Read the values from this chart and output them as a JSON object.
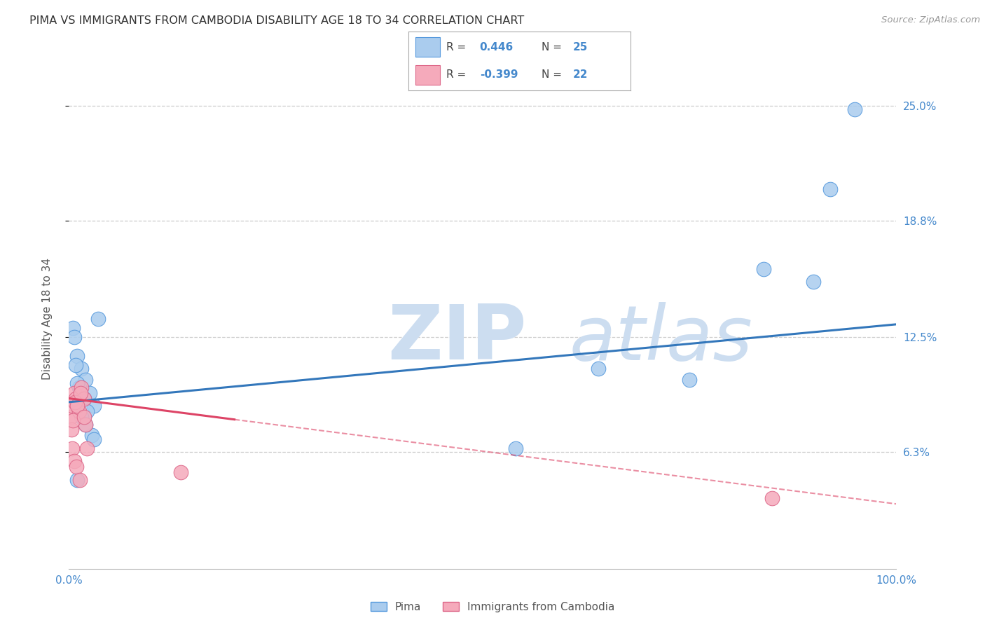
{
  "title": "PIMA VS IMMIGRANTS FROM CAMBODIA DISABILITY AGE 18 TO 34 CORRELATION CHART",
  "source": "Source: ZipAtlas.com",
  "ylabel": "Disability Age 18 to 34",
  "xlim": [
    0,
    100
  ],
  "ylim": [
    0,
    27
  ],
  "yticks": [
    6.3,
    12.5,
    18.8,
    25.0
  ],
  "ytick_labels": [
    "6.3%",
    "12.5%",
    "18.8%",
    "25.0%"
  ],
  "xtick_labels": [
    "0.0%",
    "100.0%"
  ],
  "legend_labels": [
    "Pima",
    "Immigrants from Cambodia"
  ],
  "pima_R": "0.446",
  "pima_N": "25",
  "cambodia_R": "-0.399",
  "cambodia_N": "22",
  "background_color": "#ffffff",
  "grid_color": "#cccccc",
  "watermark_zip": "ZIP",
  "watermark_atlas": "atlas",
  "watermark_color": "#ccddf0",
  "blue_fill": "#aaccee",
  "blue_edge": "#5599dd",
  "pink_fill": "#f5aabb",
  "pink_edge": "#dd6688",
  "blue_line": "#3377bb",
  "pink_line": "#dd4466",
  "pima_x": [
    0.5,
    1.0,
    1.5,
    2.0,
    2.5,
    3.0,
    0.8,
    1.2,
    1.8,
    2.2,
    3.5,
    0.6,
    1.0,
    1.5,
    2.8,
    54,
    64,
    75,
    84,
    90,
    92,
    95,
    1.0,
    2.0,
    3.0
  ],
  "pima_y": [
    13.0,
    11.5,
    10.8,
    10.2,
    9.5,
    8.8,
    11.0,
    9.8,
    9.2,
    8.5,
    13.5,
    12.5,
    10.0,
    8.2,
    7.2,
    6.5,
    10.8,
    10.2,
    16.2,
    15.5,
    20.5,
    24.8,
    4.8,
    7.8,
    7.0
  ],
  "camb_x": [
    0.2,
    0.4,
    0.6,
    0.8,
    1.0,
    1.2,
    1.5,
    1.8,
    2.0,
    0.3,
    0.5,
    0.7,
    1.0,
    1.4,
    1.8,
    0.4,
    0.6,
    0.9,
    1.3,
    2.2,
    13.5,
    85
  ],
  "camb_y": [
    8.2,
    8.8,
    9.5,
    9.2,
    9.0,
    8.5,
    9.8,
    9.2,
    7.8,
    7.5,
    8.0,
    9.0,
    8.8,
    9.5,
    8.2,
    6.5,
    5.8,
    5.5,
    4.8,
    6.5,
    5.2,
    3.8
  ],
  "blue_trendline_start_y": 9.0,
  "blue_trendline_end_y": 13.2,
  "pink_trendline_start_y": 9.2,
  "pink_trendline_end_y": 3.5,
  "pink_solid_end_x": 20
}
